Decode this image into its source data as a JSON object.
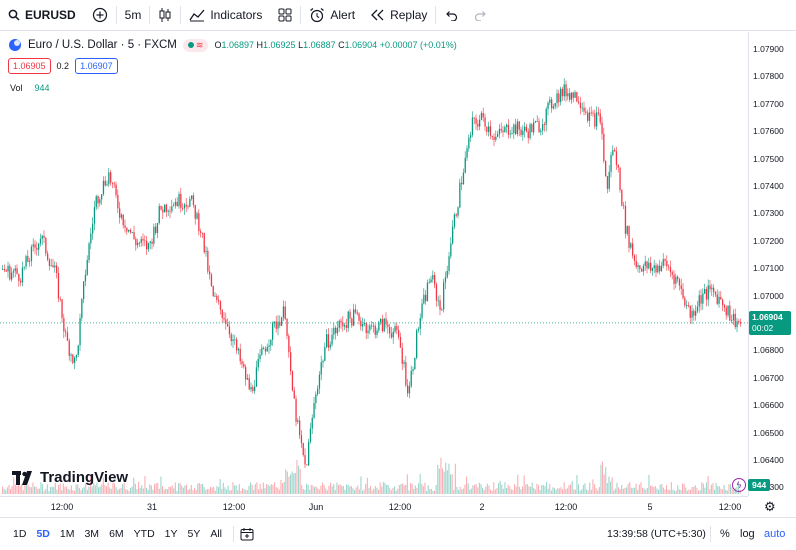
{
  "toolbar": {
    "symbol": "EURUSD",
    "interval": "5m",
    "indicators_label": "Indicators",
    "alert_label": "Alert",
    "replay_label": "Replay"
  },
  "legend": {
    "title": "Euro / U.S. Dollar · 5 · FXCM",
    "open_key": "O",
    "open": "1.06897",
    "high_key": "H",
    "high": "1.06925",
    "low_key": "L",
    "low": "1.06887",
    "close_key": "C",
    "close": "1.06904",
    "change": "+0.00007 (+0.01%)",
    "bid": "1.06905",
    "spread": "0.2",
    "ask": "1.06907",
    "vol_label": "Vol",
    "vol_value": "944"
  },
  "price_axis": {
    "ticks": [
      "1.07900",
      "1.07800",
      "1.07700",
      "1.07600",
      "1.07500",
      "1.07400",
      "1.07300",
      "1.07200",
      "1.07100",
      "1.07000",
      "1.06800",
      "1.06700",
      "1.06600",
      "1.06500",
      "1.06400",
      "1.06300"
    ],
    "last_price": "1.06904",
    "countdown": "00:02",
    "vol_badge": "944"
  },
  "time_axis": {
    "ticks": [
      "12:00",
      "31",
      "12:00",
      "Jun",
      "12:00",
      "2",
      "12:00",
      "5",
      "12:00"
    ]
  },
  "bottom": {
    "ranges": [
      "1D",
      "5D",
      "1M",
      "3M",
      "6M",
      "YTD",
      "1Y",
      "5Y",
      "All"
    ],
    "active_range": "5D",
    "clock": "13:39:58 (UTC+5:30)",
    "percent_label": "%",
    "log_label": "log",
    "auto_label": "auto"
  },
  "brand": {
    "name": "TradingView"
  },
  "colors": {
    "up": "#089981",
    "down": "#f23645",
    "accent": "#2962ff"
  },
  "chart_data": {
    "type": "candlestick",
    "symbol": "EURUSD",
    "interval": "5",
    "ylim": [
      1.0625,
      1.0795
    ],
    "y_ticks": [
      1.079,
      1.078,
      1.077,
      1.076,
      1.075,
      1.074,
      1.073,
      1.072,
      1.071,
      1.07,
      1.068,
      1.067,
      1.066,
      1.065,
      1.064,
      1.063
    ],
    "price_path": [
      [
        0,
        1.071
      ],
      [
        20,
        1.0708
      ],
      [
        40,
        1.0722
      ],
      [
        55,
        1.0708
      ],
      [
        65,
        1.0685
      ],
      [
        75,
        1.0675
      ],
      [
        85,
        1.071
      ],
      [
        95,
        1.0735
      ],
      [
        108,
        1.0745
      ],
      [
        120,
        1.073
      ],
      [
        135,
        1.072
      ],
      [
        148,
        1.0718
      ],
      [
        160,
        1.0732
      ],
      [
        175,
        1.0735
      ],
      [
        190,
        1.0735
      ],
      [
        200,
        1.0725
      ],
      [
        212,
        1.07
      ],
      [
        225,
        1.0692
      ],
      [
        238,
        1.0678
      ],
      [
        250,
        1.0665
      ],
      [
        262,
        1.068
      ],
      [
        275,
        1.069
      ],
      [
        285,
        1.0695
      ],
      [
        290,
        1.067
      ],
      [
        298,
        1.065
      ],
      [
        305,
        1.0637
      ],
      [
        315,
        1.0665
      ],
      [
        325,
        1.0683
      ],
      [
        340,
        1.069
      ],
      [
        355,
        1.0693
      ],
      [
        370,
        1.0688
      ],
      [
        385,
        1.069
      ],
      [
        398,
        1.0685
      ],
      [
        408,
        1.0665
      ],
      [
        418,
        1.069
      ],
      [
        430,
        1.0708
      ],
      [
        440,
        1.0695
      ],
      [
        450,
        1.072
      ],
      [
        462,
        1.0745
      ],
      [
        472,
        1.0763
      ],
      [
        482,
        1.0765
      ],
      [
        495,
        1.0758
      ],
      [
        510,
        1.0762
      ],
      [
        525,
        1.076
      ],
      [
        540,
        1.0763
      ],
      [
        555,
        1.0773
      ],
      [
        565,
        1.0775
      ],
      [
        578,
        1.0773
      ],
      [
        590,
        1.0765
      ],
      [
        600,
        1.0765
      ],
      [
        606,
        1.0738
      ],
      [
        612,
        1.0755
      ],
      [
        618,
        1.0745
      ],
      [
        625,
        1.0725
      ],
      [
        635,
        1.0712
      ],
      [
        650,
        1.071
      ],
      [
        665,
        1.0712
      ],
      [
        678,
        1.0705
      ],
      [
        690,
        1.0693
      ],
      [
        700,
        1.07
      ],
      [
        712,
        1.0702
      ],
      [
        722,
        1.0698
      ],
      [
        732,
        1.0692
      ],
      [
        740,
        1.069
      ]
    ],
    "last_close": 1.06904
  }
}
